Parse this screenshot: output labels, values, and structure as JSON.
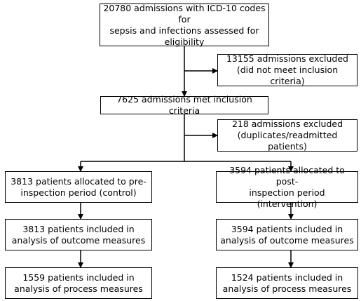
{
  "flowchart": {
    "screening": "20780 admissions with ICD-10 codes for\nsepsis and infections assessed for\neligibility",
    "exclusion_1": "13155 admissions excluded\n(did not meet inclusion criteria)",
    "inclusion": "7625 admissions met inclusion criteria",
    "exclusion_2": "218 admissions excluded\n(duplicates/readmitted patients)",
    "pre_allocated": "3813 patients allocated to pre-\ninspection period (control)",
    "post_allocated": "3594 patients allocated to post-\ninspection period (intervention)",
    "pre_outcome": "3813 patients included in\nanalysis of outcome measures",
    "post_outcome": "3594 patients included in\nanalysis of outcome measures",
    "pre_process": "1559 patients included in\nanalysis of process measures",
    "post_process": "1524 patients included in\nanalysis of process measures"
  }
}
